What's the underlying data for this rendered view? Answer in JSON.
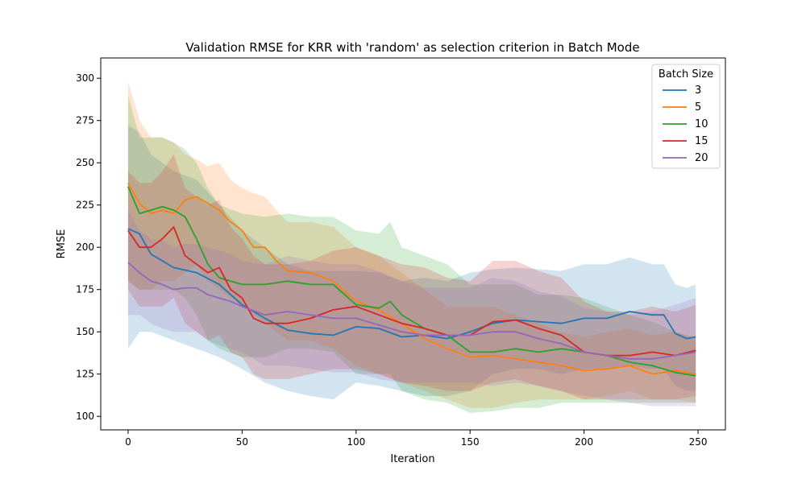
{
  "chart_data": {
    "type": "line",
    "title": "Validation RMSE for KRR with 'random' as selection criterion in Batch Mode",
    "xlabel": "Iteration",
    "ylabel": "RMSE",
    "xlim": [
      -12,
      262
    ],
    "ylim": [
      92,
      312
    ],
    "xticks": [
      0,
      50,
      100,
      150,
      200,
      250
    ],
    "yticks": [
      100,
      125,
      150,
      175,
      200,
      225,
      250,
      275,
      300
    ],
    "grid": false,
    "legend": {
      "title": "Batch Size",
      "placement": "top-right"
    },
    "band": "shaded variability band around each series",
    "series": [
      {
        "name": "3",
        "color": "#1f77b4",
        "x": [
          0,
          5,
          10,
          20,
          30,
          40,
          50,
          60,
          70,
          80,
          90,
          100,
          110,
          120,
          130,
          140,
          150,
          160,
          170,
          180,
          190,
          200,
          210,
          220,
          230,
          235,
          240,
          245,
          249
        ],
        "values": [
          211,
          208,
          196,
          188,
          185,
          178,
          166,
          158,
          151,
          149,
          148,
          153,
          152,
          147,
          148,
          146,
          150,
          155,
          157,
          156,
          155,
          158,
          158,
          162,
          160,
          160,
          149,
          146,
          147
        ],
        "lower": [
          140,
          150,
          150,
          145,
          140,
          135,
          128,
          120,
          115,
          112,
          110,
          120,
          118,
          115,
          112,
          112,
          115,
          125,
          128,
          128,
          125,
          128,
          128,
          130,
          128,
          128,
          118,
          115,
          115
        ],
        "upper": [
          272,
          268,
          255,
          245,
          240,
          225,
          210,
          200,
          190,
          186,
          186,
          186,
          185,
          180,
          182,
          180,
          185,
          187,
          188,
          187,
          186,
          190,
          190,
          194,
          190,
          190,
          178,
          176,
          178
        ]
      },
      {
        "name": "5",
        "color": "#ff7f0e",
        "x": [
          0,
          5,
          10,
          15,
          20,
          25,
          30,
          35,
          40,
          45,
          50,
          55,
          60,
          65,
          70,
          80,
          90,
          100,
          110,
          120,
          130,
          140,
          150,
          160,
          170,
          180,
          190,
          200,
          210,
          220,
          230,
          240,
          249
        ],
        "values": [
          238,
          226,
          220,
          222,
          220,
          228,
          230,
          226,
          222,
          215,
          210,
          200,
          200,
          192,
          186,
          185,
          180,
          168,
          163,
          155,
          146,
          140,
          135,
          136,
          134,
          132,
          130,
          127,
          128,
          130,
          125,
          127,
          125
        ],
        "lower": [
          180,
          175,
          175,
          180,
          180,
          185,
          190,
          180,
          175,
          170,
          165,
          160,
          155,
          150,
          145,
          145,
          140,
          130,
          125,
          120,
          115,
          110,
          105,
          105,
          108,
          110,
          110,
          110,
          112,
          115,
          110,
          110,
          108
        ],
        "upper": [
          298,
          275,
          265,
          265,
          262,
          255,
          252,
          248,
          250,
          240,
          235,
          232,
          230,
          222,
          215,
          215,
          212,
          200,
          195,
          185,
          175,
          165,
          165,
          165,
          160,
          155,
          150,
          147,
          150,
          152,
          148,
          150,
          147
        ]
      },
      {
        "name": "10",
        "color": "#2ca02c",
        "x": [
          0,
          5,
          10,
          15,
          20,
          25,
          30,
          35,
          40,
          50,
          60,
          70,
          80,
          90,
          100,
          110,
          115,
          120,
          130,
          140,
          150,
          160,
          170,
          180,
          190,
          200,
          210,
          220,
          230,
          240,
          249
        ],
        "values": [
          236,
          220,
          222,
          224,
          222,
          218,
          205,
          190,
          182,
          178,
          178,
          180,
          178,
          178,
          166,
          164,
          168,
          160,
          152,
          148,
          138,
          138,
          140,
          138,
          140,
          138,
          136,
          132,
          130,
          126,
          124
        ],
        "lower": [
          180,
          175,
          175,
          175,
          175,
          170,
          160,
          145,
          140,
          135,
          135,
          140,
          140,
          138,
          125,
          125,
          125,
          115,
          110,
          108,
          102,
          103,
          105,
          105,
          108,
          108,
          108,
          108,
          108,
          108,
          108
        ],
        "upper": [
          290,
          265,
          265,
          265,
          262,
          258,
          250,
          235,
          225,
          220,
          218,
          220,
          218,
          218,
          210,
          208,
          215,
          200,
          195,
          190,
          178,
          178,
          178,
          172,
          172,
          170,
          165,
          160,
          156,
          150,
          146
        ]
      },
      {
        "name": "15",
        "color": "#d62728",
        "x": [
          0,
          5,
          10,
          15,
          20,
          25,
          30,
          35,
          40,
          45,
          50,
          55,
          60,
          70,
          80,
          90,
          100,
          110,
          120,
          130,
          140,
          150,
          160,
          170,
          180,
          190,
          200,
          210,
          220,
          230,
          240,
          249
        ],
        "values": [
          210,
          200,
          200,
          205,
          212,
          195,
          190,
          185,
          188,
          175,
          170,
          158,
          155,
          155,
          158,
          163,
          165,
          160,
          155,
          152,
          148,
          148,
          156,
          157,
          152,
          148,
          138,
          136,
          136,
          138,
          136,
          139
        ],
        "lower": [
          175,
          165,
          165,
          165,
          170,
          155,
          150,
          145,
          148,
          138,
          135,
          125,
          122,
          122,
          125,
          128,
          128,
          125,
          120,
          118,
          115,
          115,
          120,
          122,
          118,
          115,
          110,
          110,
          110,
          110,
          110,
          112
        ],
        "upper": [
          245,
          238,
          238,
          245,
          255,
          235,
          230,
          225,
          228,
          212,
          205,
          195,
          190,
          190,
          192,
          198,
          200,
          195,
          190,
          188,
          182,
          180,
          192,
          192,
          186,
          182,
          168,
          162,
          162,
          165,
          162,
          166
        ]
      },
      {
        "name": "20",
        "color": "#9467bd",
        "x": [
          0,
          5,
          10,
          15,
          20,
          25,
          30,
          35,
          40,
          45,
          50,
          60,
          70,
          80,
          90,
          100,
          110,
          120,
          130,
          140,
          150,
          160,
          170,
          180,
          190,
          200,
          210,
          220,
          230,
          240,
          249
        ],
        "values": [
          191,
          185,
          180,
          178,
          175,
          176,
          176,
          172,
          170,
          168,
          165,
          160,
          162,
          160,
          158,
          158,
          154,
          150,
          148,
          148,
          148,
          150,
          150,
          146,
          143,
          138,
          136,
          134,
          134,
          136,
          138
        ],
        "lower": [
          160,
          160,
          155,
          152,
          150,
          150,
          150,
          145,
          142,
          140,
          138,
          130,
          130,
          128,
          126,
          126,
          122,
          120,
          120,
          120,
          120,
          118,
          120,
          118,
          115,
          112,
          110,
          108,
          106,
          106,
          106
        ],
        "upper": [
          222,
          210,
          205,
          204,
          200,
          202,
          202,
          200,
          198,
          196,
          192,
          190,
          195,
          192,
          190,
          190,
          186,
          180,
          176,
          176,
          176,
          182,
          180,
          174,
          171,
          164,
          162,
          160,
          162,
          166,
          170
        ]
      }
    ]
  }
}
